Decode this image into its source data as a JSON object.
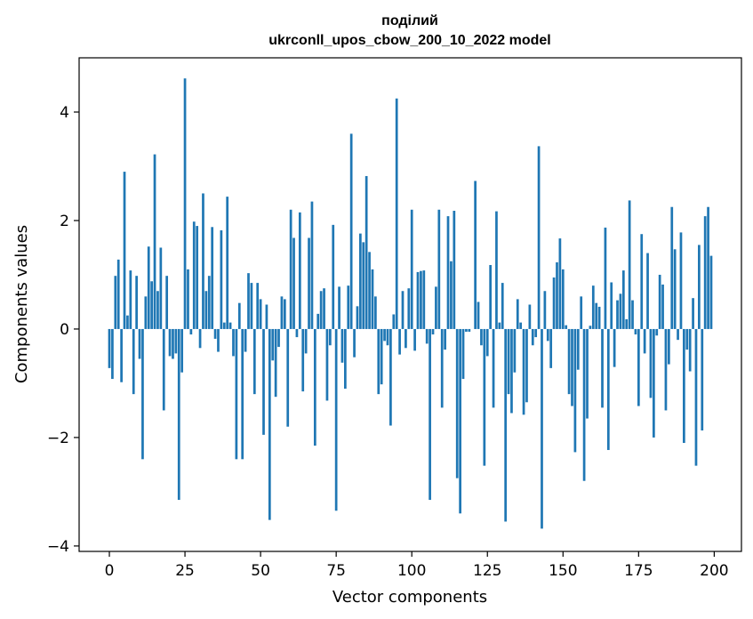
{
  "chart_data": {
    "type": "bar",
    "title": [
      "поділий",
      "ukrconll_upos_cbow_200_10_2022 model"
    ],
    "xlabel": "Vector components",
    "ylabel": "Components values",
    "xlim": [
      -10,
      209
    ],
    "ylim": [
      -4.1,
      5.0
    ],
    "xticks": [
      0,
      25,
      50,
      75,
      100,
      125,
      150,
      175,
      200
    ],
    "xtick_labels": [
      "0",
      "25",
      "50",
      "75",
      "100",
      "125",
      "150",
      "175",
      "200"
    ],
    "yticks": [
      -4,
      -2,
      0,
      2,
      4
    ],
    "ytick_labels": [
      "−4",
      "−2",
      "0",
      "2",
      "4"
    ],
    "grid": false,
    "bar_color": "#1f77b4",
    "values": [
      -0.72,
      -0.92,
      0.98,
      1.28,
      -0.98,
      2.9,
      0.25,
      1.08,
      -1.2,
      0.98,
      -0.55,
      -2.4,
      0.6,
      1.52,
      0.88,
      3.22,
      0.7,
      1.5,
      -1.5,
      0.98,
      -0.5,
      -0.55,
      -0.45,
      -3.15,
      -0.8,
      4.62,
      1.1,
      -0.1,
      1.98,
      1.9,
      -0.35,
      2.5,
      0.7,
      0.98,
      1.88,
      -0.18,
      -0.42,
      1.82,
      0.12,
      2.44,
      0.12,
      -0.5,
      -2.4,
      0.48,
      -2.4,
      -0.42,
      1.03,
      0.85,
      -1.2,
      0.85,
      0.55,
      -1.95,
      0.45,
      -3.52,
      -0.58,
      -1.25,
      -0.33,
      0.6,
      0.55,
      -1.8,
      2.2,
      1.68,
      -0.15,
      2.15,
      -1.15,
      -0.45,
      1.68,
      2.35,
      -2.15,
      0.28,
      0.7,
      0.75,
      -1.32,
      -0.3,
      1.92,
      -3.35,
      0.78,
      -0.62,
      -1.1,
      0.8,
      3.6,
      -0.52,
      0.42,
      1.76,
      1.6,
      2.82,
      1.42,
      1.1,
      0.6,
      -1.2,
      -1.02,
      -0.22,
      -0.3,
      -1.78,
      0.27,
      4.25,
      -0.47,
      0.7,
      -0.35,
      0.75,
      2.2,
      -0.4,
      1.05,
      1.07,
      1.08,
      -0.27,
      -3.15,
      -0.1,
      0.78,
      2.2,
      -1.45,
      -0.38,
      2.08,
      1.25,
      2.18,
      -2.75,
      -3.4,
      -0.92,
      -0.05,
      -0.05,
      0.0,
      2.73,
      0.5,
      -0.3,
      -2.52,
      -0.5,
      1.18,
      -1.45,
      2.17,
      0.12,
      0.85,
      -3.55,
      -1.2,
      -1.55,
      -0.8,
      0.55,
      0.12,
      -1.58,
      -1.35,
      0.45,
      -0.3,
      -0.15,
      3.37,
      -3.68,
      0.7,
      -0.22,
      -0.72,
      0.95,
      1.23,
      1.67,
      1.1,
      0.07,
      -1.2,
      -1.42,
      -2.27,
      -0.75,
      0.6,
      -2.8,
      -1.65,
      0.06,
      0.8,
      0.48,
      0.41,
      -1.45,
      1.87,
      -2.23,
      0.86,
      -0.7,
      0.53,
      0.65,
      1.08,
      0.18,
      2.37,
      0.53,
      -0.1,
      -1.42,
      1.75,
      -0.45,
      1.4,
      -1.27,
      -2.0,
      -0.12,
      1.0,
      0.82,
      -1.5,
      -0.65,
      2.25,
      1.47,
      -0.2,
      1.78,
      -2.1,
      -0.38,
      -0.78,
      0.57,
      -2.52,
      1.55,
      -1.87,
      2.08,
      2.25,
      1.35
    ]
  }
}
